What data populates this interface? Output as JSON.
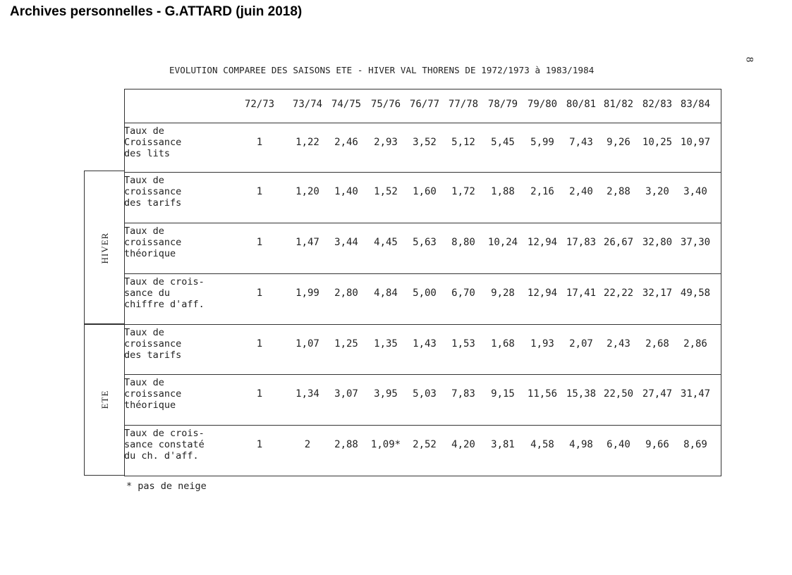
{
  "header": "Archives personnelles - G.ATTARD (juin 2018)",
  "page_number": "8",
  "title": "EVOLUTION COMPAREE DES SAISONS ETE - HIVER VAL THORENS DE 1972/1973 à 1983/1984",
  "seasons": {
    "hiver": "HIVER",
    "ete": "ETE"
  },
  "columns": [
    "72/73",
    "73/74",
    "74/75",
    "75/76",
    "76/77",
    "77/78",
    "78/79",
    "79/80",
    "80/81",
    "81/82",
    "82/83",
    "83/84"
  ],
  "rows": [
    {
      "label": "Taux de\nCroissance\ndes lits",
      "values": [
        "1",
        "1,22",
        "2,46",
        "2,93",
        "3,52",
        "5,12",
        "5,45",
        "5,99",
        "7,43",
        "9,26",
        "10,25",
        "10,97"
      ]
    },
    {
      "label": "Taux de\ncroissance\ndes tarifs",
      "values": [
        "1",
        "1,20",
        "1,40",
        "1,52",
        "1,60",
        "1,72",
        "1,88",
        "2,16",
        "2,40",
        "2,88",
        "3,20",
        "3,40"
      ]
    },
    {
      "label": "Taux de\ncroissance\nthéorique",
      "values": [
        "1",
        "1,47",
        "3,44",
        "4,45",
        "5,63",
        "8,80",
        "10,24",
        "12,94",
        "17,83",
        "26,67",
        "32,80",
        "37,30"
      ]
    },
    {
      "label": "Taux de crois-\nsance du\nchiffre d'aff.",
      "values": [
        "1",
        "1,99",
        "2,80",
        "4,84",
        "5,00",
        "6,70",
        "9,28",
        "12,94",
        "17,41",
        "22,22",
        "32,17",
        "49,58"
      ]
    },
    {
      "label": "Taux de\ncroissance\ndes tarifs",
      "values": [
        "1",
        "1,07",
        "1,25",
        "1,35",
        "1,43",
        "1,53",
        "1,68",
        "1,93",
        "2,07",
        "2,43",
        "2,68",
        "2,86"
      ]
    },
    {
      "label": "Taux de\ncroissance\nthéorique",
      "values": [
        "1",
        "1,34",
        "3,07",
        "3,95",
        "5,03",
        "7,83",
        "9,15",
        "11,56",
        "15,38",
        "22,50",
        "27,47",
        "31,47"
      ]
    },
    {
      "label": "Taux de crois-\nsance constaté\ndu ch. d'aff.",
      "values": [
        "1",
        "2",
        "2,88",
        "1,09*",
        "2,52",
        "4,20",
        "3,81",
        "4,58",
        "4,98",
        "6,40",
        "9,66",
        "8,69"
      ]
    }
  ],
  "footnote": "* pas de neige"
}
